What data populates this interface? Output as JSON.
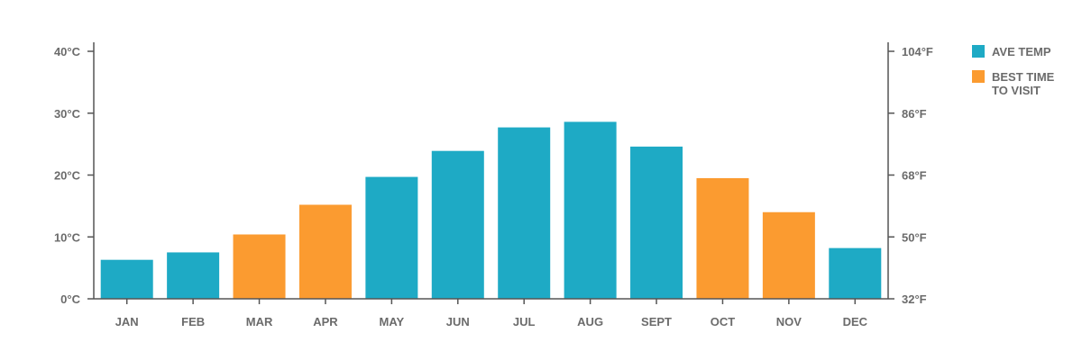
{
  "chart_data": {
    "type": "bar",
    "categories": [
      "JAN",
      "FEB",
      "MAR",
      "APR",
      "MAY",
      "JUN",
      "JUL",
      "AUG",
      "SEPT",
      "OCT",
      "NOV",
      "DEC"
    ],
    "series": [
      {
        "name": "AVE TEMP",
        "values": [
          6.3,
          7.5,
          10.4,
          15.2,
          19.7,
          23.9,
          27.7,
          28.6,
          24.6,
          19.5,
          14.0,
          8.2
        ]
      }
    ],
    "best_time_to_visit": [
      false,
      false,
      true,
      true,
      false,
      false,
      false,
      false,
      false,
      true,
      true,
      false
    ],
    "ylim": [
      0,
      40
    ],
    "left_ticks": [
      "0°C",
      "10°C",
      "20°C",
      "30°C",
      "40°C"
    ],
    "left_tick_values": [
      0,
      10,
      20,
      30,
      40
    ],
    "right_ticks": [
      "32°F",
      "50°F",
      "68°F",
      "86°F",
      "104°F"
    ],
    "grid": false,
    "legend_position": "right",
    "legend": [
      {
        "label_lines": [
          "AVE TEMP"
        ],
        "color": "#1eaac5"
      },
      {
        "label_lines": [
          "BEST TIME",
          "TO VISIT"
        ],
        "color": "#fb9b30"
      }
    ],
    "colors": {
      "ave_temp": "#1eaac5",
      "best_time": "#fb9b30",
      "text": "#6b6b6b",
      "axis": "#555555"
    }
  }
}
